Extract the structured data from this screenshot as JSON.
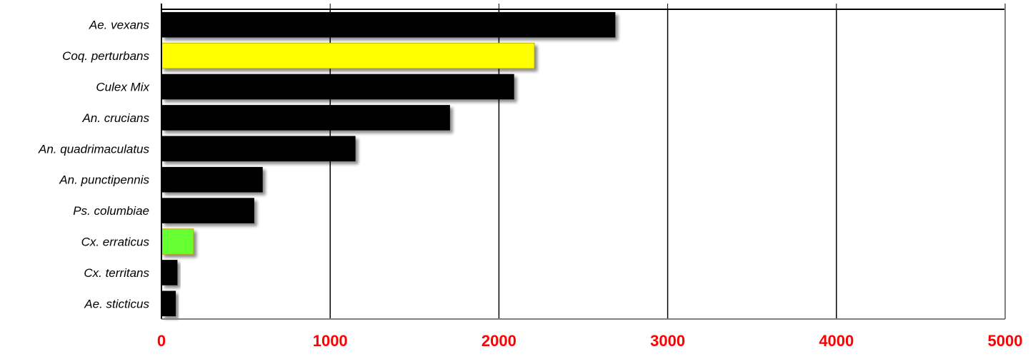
{
  "chart_data": {
    "type": "bar",
    "orientation": "horizontal",
    "title": "",
    "xlabel": "",
    "ylabel": "",
    "categories": [
      "Ae. vexans",
      "Coq. perturbans",
      "Culex Mix",
      "An. crucians",
      "An. quadrimaculatus",
      "An. punctipennis",
      "Ps. columbiae",
      "Cx. erraticus",
      "Cx. territans",
      "Ae. sticticus"
    ],
    "values": [
      2690,
      2210,
      2090,
      1710,
      1150,
      600,
      550,
      190,
      95,
      85
    ],
    "bar_colors": [
      "#000000",
      "#ffff00",
      "#000000",
      "#000000",
      "#000000",
      "#000000",
      "#000000",
      "#66ff33",
      "#000000",
      "#000000"
    ],
    "xlim": [
      0,
      5000
    ],
    "xticks": [
      0,
      1000,
      2000,
      3000,
      4000,
      5000
    ],
    "xtick_labels": [
      "0",
      "1000",
      "2000",
      "3000",
      "4000",
      "5000"
    ],
    "tick_label_color": "#ff0000",
    "grid": true,
    "legend": "none",
    "bar_shadow": true
  }
}
